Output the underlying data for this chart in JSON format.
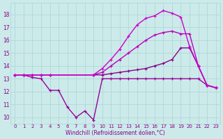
{
  "xlabel": "Windchill (Refroidissement éolien,°C)",
  "background_color": "#cceaea",
  "grid_color": "#aad4d4",
  "xlim": [
    -0.5,
    23.5
  ],
  "ylim": [
    9.5,
    18.9
  ],
  "yticks": [
    10,
    11,
    12,
    13,
    14,
    15,
    16,
    17,
    18
  ],
  "xticks": [
    0,
    1,
    2,
    3,
    4,
    5,
    6,
    7,
    8,
    9,
    10,
    11,
    12,
    13,
    14,
    15,
    16,
    17,
    18,
    19,
    20,
    21,
    22,
    23
  ],
  "series": [
    {
      "x": [
        0,
        1,
        2,
        3,
        4,
        5,
        6,
        7,
        8,
        9,
        10,
        11,
        12,
        13,
        14,
        15,
        16,
        17,
        18,
        19,
        20,
        21,
        22,
        23
      ],
      "y": [
        13.3,
        13.3,
        13.1,
        13.0,
        12.1,
        12.1,
        10.8,
        10.0,
        10.5,
        9.8,
        13.0,
        13.0,
        13.0,
        13.0,
        13.0,
        13.0,
        13.0,
        13.0,
        13.0,
        13.0,
        13.0,
        13.0,
        12.5,
        12.3
      ],
      "color": "#990099",
      "linewidth": 1.0
    },
    {
      "x": [
        0,
        1,
        2,
        3,
        4,
        9,
        10,
        11,
        12,
        13,
        14,
        15,
        16,
        17,
        18,
        19,
        20,
        21,
        22,
        23
      ],
      "y": [
        13.3,
        13.3,
        13.3,
        13.3,
        13.3,
        13.3,
        13.3,
        13.4,
        13.5,
        13.6,
        13.7,
        13.8,
        14.0,
        14.2,
        14.5,
        15.4,
        15.4,
        14.0,
        12.5,
        12.3
      ],
      "color": "#880088",
      "linewidth": 1.0
    },
    {
      "x": [
        0,
        1,
        2,
        3,
        4,
        9,
        10,
        11,
        12,
        13,
        14,
        15,
        16,
        17,
        18,
        19,
        20,
        21,
        22,
        23
      ],
      "y": [
        13.3,
        13.3,
        13.3,
        13.3,
        13.3,
        13.3,
        13.5,
        14.0,
        14.5,
        15.0,
        15.5,
        16.0,
        16.4,
        16.6,
        16.7,
        16.5,
        16.5,
        14.0,
        12.5,
        12.3
      ],
      "color": "#bb00bb",
      "linewidth": 1.0
    },
    {
      "x": [
        0,
        1,
        2,
        3,
        4,
        9,
        10,
        11,
        12,
        13,
        14,
        15,
        16,
        17,
        18,
        19,
        20,
        21,
        22,
        23
      ],
      "y": [
        13.3,
        13.3,
        13.3,
        13.3,
        13.3,
        13.3,
        13.8,
        14.5,
        15.3,
        16.3,
        17.2,
        17.7,
        17.9,
        18.3,
        18.1,
        17.8,
        15.5,
        14.0,
        12.5,
        12.3
      ],
      "color": "#cc00cc",
      "linewidth": 1.0
    }
  ]
}
